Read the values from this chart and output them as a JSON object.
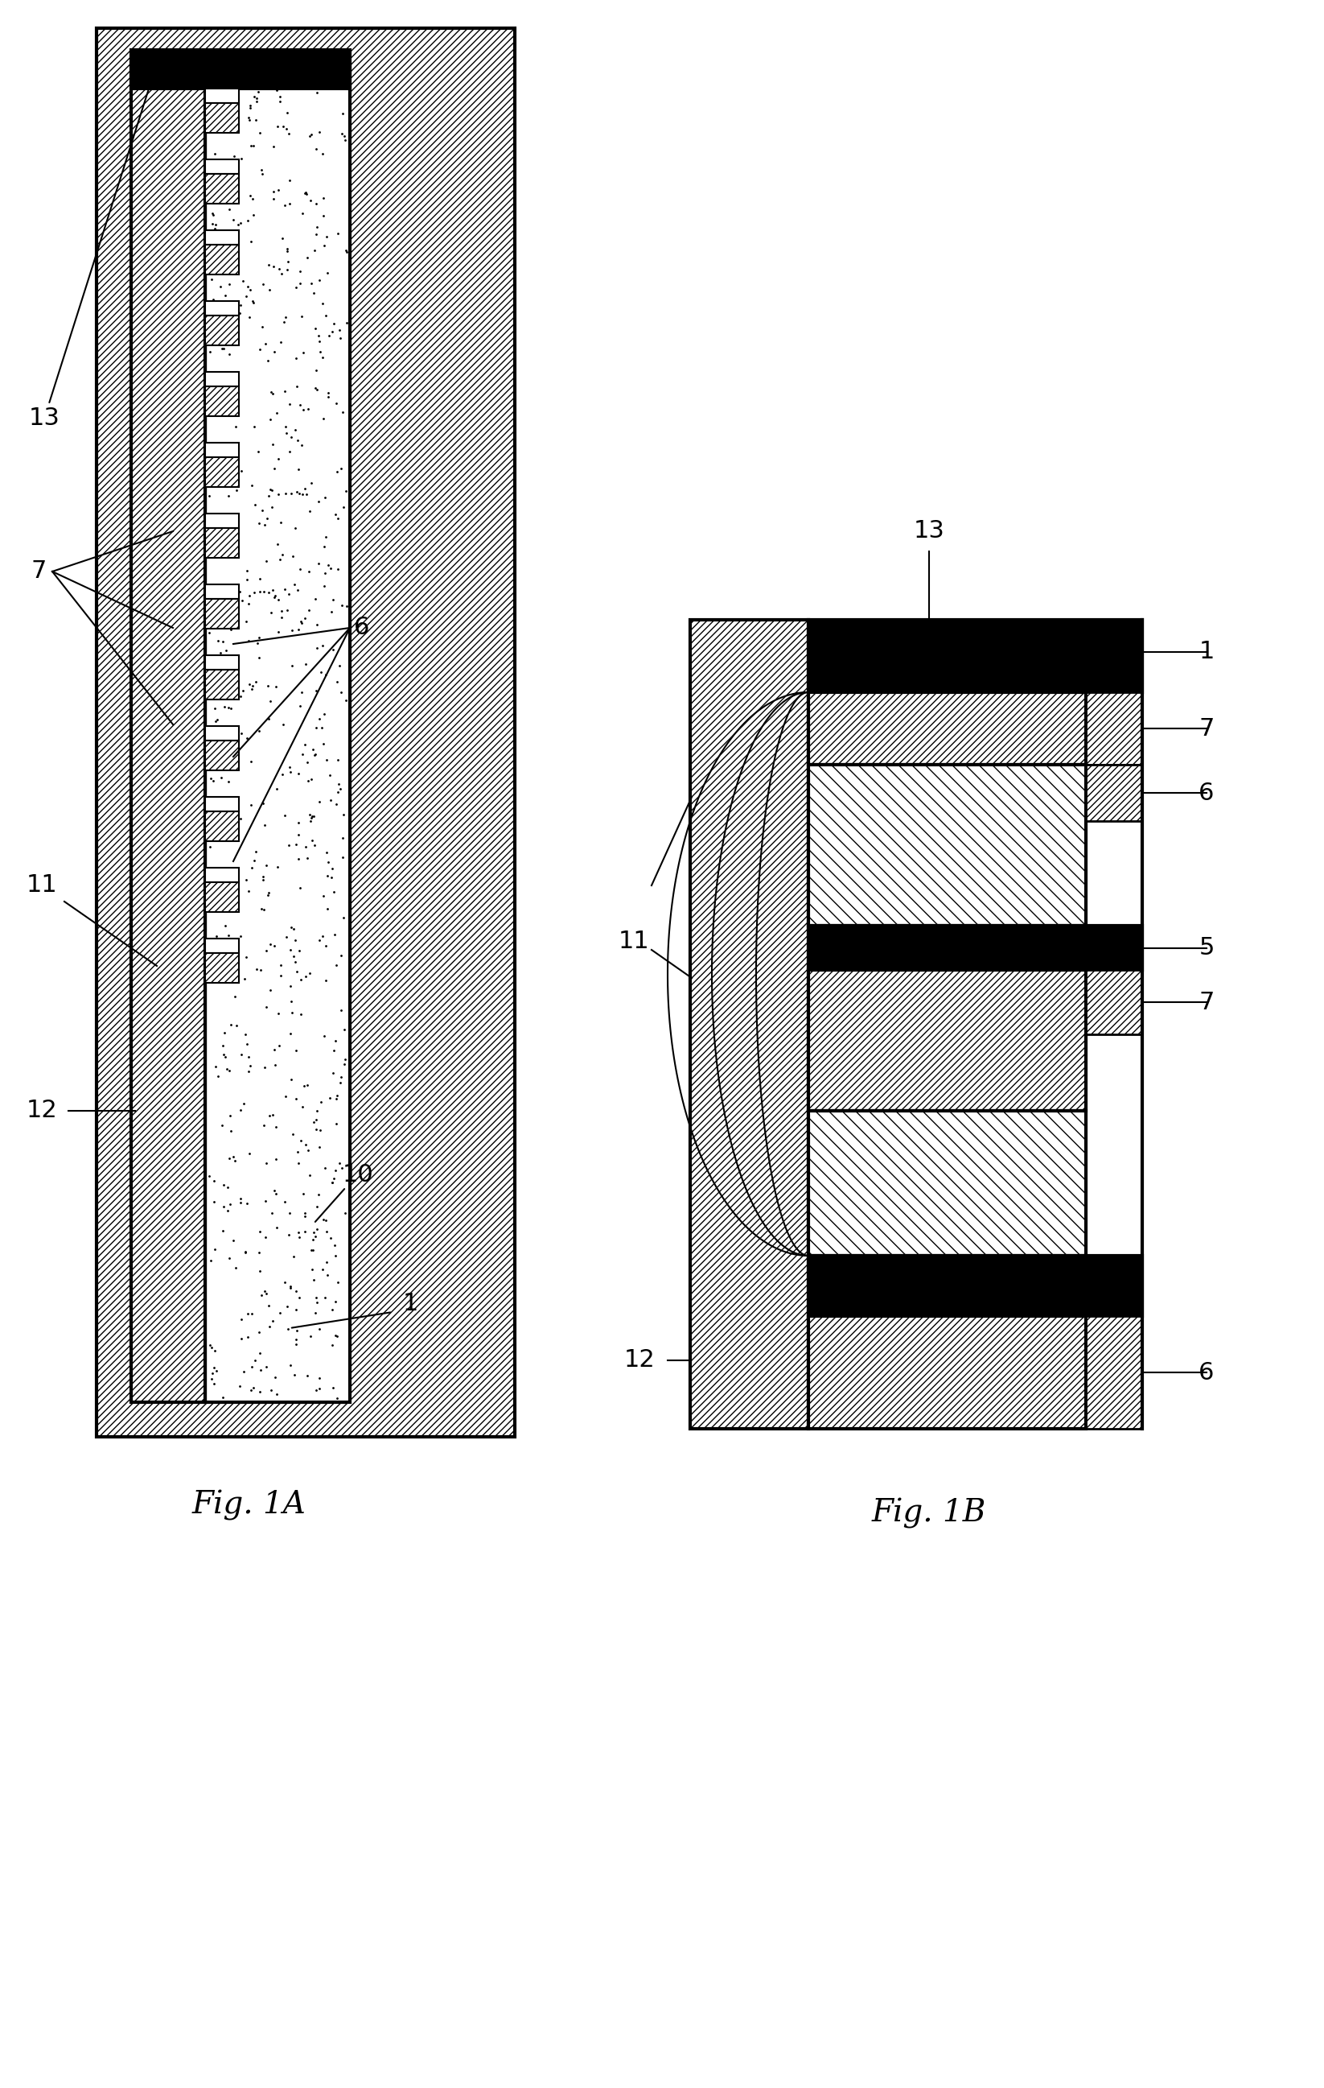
{
  "fig_width": 16.46,
  "fig_height": 25.94,
  "bg_color": "#ffffff",
  "label_fontsize": 22,
  "title_fontsize": 28,
  "fig1A_title": "Fig. 1A",
  "fig1B_title": "Fig. 1B"
}
